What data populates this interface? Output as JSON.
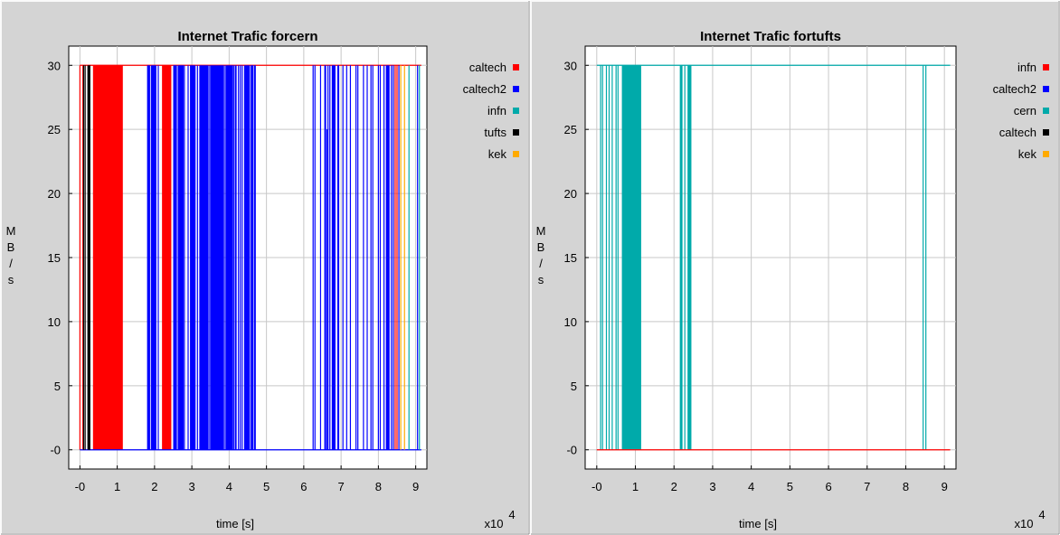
{
  "chart_data": [
    {
      "type": "line",
      "title": "Internet Trafic forcern",
      "xlabel": "time [s]",
      "ylabel": "M B / s",
      "x_multiplier": "x10",
      "x_multiplier_exp": "4",
      "xticks": [
        "-0",
        "1",
        "2",
        "3",
        "4",
        "5",
        "6",
        "7",
        "8",
        "9"
      ],
      "yticks": [
        "-0",
        "5",
        "10",
        "15",
        "20",
        "25",
        "30"
      ],
      "xlim": [
        -0.3,
        9.3
      ],
      "ylim": [
        -1.5,
        31.5
      ],
      "grid": true,
      "legend_position": "right",
      "legend": [
        {
          "name": "caltech",
          "color": "#ff0000"
        },
        {
          "name": "caltech2",
          "color": "#0000ff"
        },
        {
          "name": "infn",
          "color": "#00aaaa"
        },
        {
          "name": "tufts",
          "color": "#000000"
        },
        {
          "name": "kek",
          "color": "#ffaa00"
        }
      ],
      "series": [
        {
          "name": "caltech",
          "color": "#ff0000",
          "baseline": 30,
          "blocks": [
            [
              0.35,
              1.15
            ],
            [
              2.2,
              2.45
            ]
          ],
          "lines": [
            0.0,
            0.08,
            8.45,
            8.5
          ]
        },
        {
          "name": "caltech2",
          "color": "#0000ff",
          "baseline": 0,
          "blocks": [
            [
              1.8,
              1.88
            ],
            [
              1.9,
              2.05
            ],
            [
              2.5,
              2.6
            ],
            [
              2.62,
              2.78
            ],
            [
              2.95,
              3.1
            ],
            [
              3.2,
              3.45
            ],
            [
              3.5,
              3.85
            ],
            [
              3.9,
              4.1
            ],
            [
              4.15,
              4.2
            ],
            [
              4.4,
              4.55
            ],
            [
              4.6,
              4.65
            ],
            [
              6.55,
              6.6
            ],
            [
              6.75,
              6.85
            ],
            [
              6.9,
              6.95
            ],
            [
              8.2,
              8.3
            ]
          ],
          "lines": [
            2.1,
            2.8,
            2.9,
            3.15,
            3.48,
            3.87,
            4.12,
            4.25,
            4.3,
            4.35,
            4.58,
            4.62,
            4.68,
            4.7,
            6.25,
            6.3,
            6.45,
            6.65,
            6.7,
            7.05,
            7.15,
            7.25,
            7.4,
            7.45,
            7.6,
            7.7,
            7.8,
            7.85,
            8.0,
            8.05,
            8.15,
            8.35,
            8.4,
            8.55,
            9.05
          ]
        },
        {
          "name": "infn",
          "color": "#00aaaa",
          "baseline": null,
          "blocks": [],
          "lines": [
            8.82,
            9.1
          ]
        },
        {
          "name": "tufts",
          "color": "#000000",
          "baseline": null,
          "blocks": [
            [
              0.2,
              0.28
            ]
          ],
          "lines": [
            0.1,
            0.14
          ]
        },
        {
          "name": "kek",
          "color": "#ffaa00",
          "baseline": null,
          "blocks": [],
          "lines": [
            8.6,
            8.7
          ]
        }
      ],
      "spikes": [
        {
          "color": "#0000ff",
          "x": 6.62,
          "y": 25
        }
      ]
    },
    {
      "type": "line",
      "title": "Internet Trafic fortufts",
      "xlabel": "time [s]",
      "ylabel": "M B / s",
      "x_multiplier": "x10",
      "x_multiplier_exp": "4",
      "xticks": [
        "-0",
        "1",
        "2",
        "3",
        "4",
        "5",
        "6",
        "7",
        "8",
        "9"
      ],
      "yticks": [
        "-0",
        "5",
        "10",
        "15",
        "20",
        "25",
        "30"
      ],
      "xlim": [
        -0.3,
        9.3
      ],
      "ylim": [
        -1.5,
        31.5
      ],
      "grid": true,
      "legend_position": "right",
      "legend": [
        {
          "name": "infn",
          "color": "#ff0000"
        },
        {
          "name": "caltech2",
          "color": "#0000ff"
        },
        {
          "name": "cern",
          "color": "#00aaaa"
        },
        {
          "name": "caltech",
          "color": "#000000"
        },
        {
          "name": "kek",
          "color": "#ffaa00"
        }
      ],
      "series": [
        {
          "name": "cern",
          "color": "#00aaaa",
          "baseline": 30,
          "blocks": [
            [
              0.65,
              1.15
            ],
            [
              2.15,
              2.22
            ],
            [
              2.35,
              2.45
            ]
          ],
          "lines": [
            0.1,
            0.15,
            0.25,
            0.32,
            0.4,
            0.5,
            0.55,
            2.28,
            8.45,
            8.52
          ]
        },
        {
          "name": "infn",
          "color": "#ff0000",
          "baseline": 0,
          "blocks": [],
          "lines": []
        }
      ],
      "spikes": []
    }
  ]
}
